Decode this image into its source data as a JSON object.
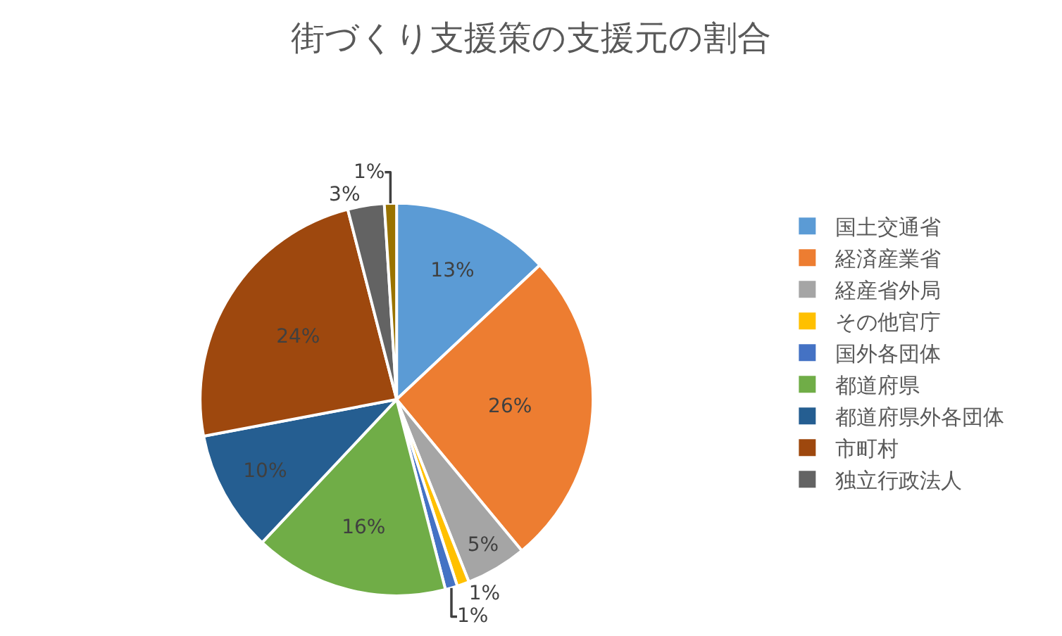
{
  "chart_data": {
    "type": "pie",
    "title": "街づくり支援策の支援元の割合",
    "categories": [
      "国土交通省",
      "経済産業省",
      "経産省外局",
      "その他官庁",
      "国外各団体",
      "都道府県",
      "都道府県外各団体",
      "市町村",
      "独立行政法人",
      null
    ],
    "values": [
      13,
      26,
      5,
      1,
      1,
      16,
      10,
      24,
      3,
      1
    ],
    "value_labels": [
      "13%",
      "26%",
      "5%",
      "1%",
      "1%",
      "16%",
      "10%",
      "24%",
      "3%",
      "1%"
    ],
    "colors": [
      "#5b9bd5",
      "#ed7d31",
      "#a5a5a5",
      "#ffc000",
      "#4472c4",
      "#70ad47",
      "#255e91",
      "#9e480e",
      "#636363",
      "#997300"
    ],
    "legend": "right"
  }
}
